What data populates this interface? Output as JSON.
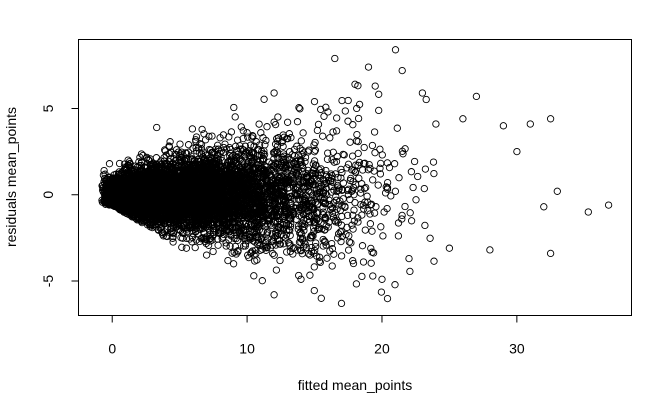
{
  "chart_data": {
    "type": "scatter",
    "title": "",
    "xlabel": "fitted mean_points",
    "ylabel": "residuals mean_points",
    "xlim": [
      -2.5,
      38.5
    ],
    "ylim": [
      -7,
      9
    ],
    "xticks": [
      0,
      10,
      20,
      30
    ],
    "yticks": [
      -5,
      0,
      5
    ],
    "marker": "open-circle",
    "point_color": "#000000",
    "grid": false,
    "legend": "none",
    "series": [
      {
        "points_sample": [
          [
            -0.6,
            1.4
          ],
          [
            -0.4,
            0.9
          ],
          [
            -0.2,
            1.8
          ],
          [
            0.0,
            0.5
          ],
          [
            0.3,
            1.2
          ],
          [
            0.5,
            -0.3
          ],
          [
            1.0,
            1.6
          ],
          [
            1.5,
            0.2
          ],
          [
            2.0,
            -0.8
          ],
          [
            2.5,
            1.0
          ],
          [
            3.0,
            -1.6
          ],
          [
            3.3,
            3.9
          ],
          [
            4.0,
            2.3
          ],
          [
            4.5,
            -2.2
          ],
          [
            5.0,
            0.4
          ],
          [
            5.5,
            -3.1
          ],
          [
            6.0,
            2.7
          ],
          [
            7.0,
            -3.5
          ],
          [
            8.0,
            3.3
          ],
          [
            9.0,
            -4.0
          ],
          [
            10.0,
            3.6
          ],
          [
            10.5,
            -4.7
          ],
          [
            11.0,
            -1.2
          ],
          [
            12.0,
            5.9
          ],
          [
            12.0,
            -5.8
          ],
          [
            13.0,
            4.2
          ],
          [
            14.0,
            -4.9
          ],
          [
            15.0,
            5.4
          ],
          [
            15.5,
            -6.0
          ],
          [
            16.0,
            4.8
          ],
          [
            16.5,
            7.9
          ],
          [
            17.0,
            -6.3
          ],
          [
            18.0,
            6.4
          ],
          [
            19.0,
            7.4
          ],
          [
            19.5,
            6.3
          ],
          [
            20.0,
            -4.9
          ],
          [
            21.0,
            8.4
          ],
          [
            21.5,
            7.2
          ],
          [
            22.0,
            -3.7
          ],
          [
            23.0,
            5.9
          ],
          [
            24.0,
            4.1
          ],
          [
            25.0,
            -3.1
          ],
          [
            26.0,
            4.4
          ],
          [
            27.0,
            5.7
          ],
          [
            28.0,
            -3.2
          ],
          [
            29.0,
            4.0
          ],
          [
            30.0,
            2.5
          ],
          [
            31.0,
            4.1
          ],
          [
            32.0,
            -0.7
          ],
          [
            32.5,
            -3.4
          ],
          [
            32.5,
            4.4
          ],
          [
            33.0,
            0.2
          ],
          [
            35.3,
            -1.0
          ],
          [
            36.8,
            -0.6
          ]
        ],
        "generated_cloud": {
          "n": 6500,
          "x_range": [
            -0.8,
            24
          ],
          "center": 0.0,
          "seed": 20240521
        }
      }
    ]
  }
}
